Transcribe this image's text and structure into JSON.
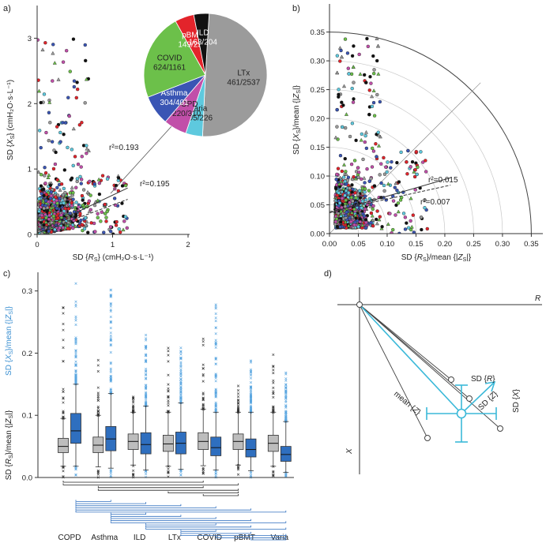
{
  "figure": {
    "panels": {
      "a": "a)",
      "b": "b)",
      "c": "c)",
      "d": "d)"
    }
  },
  "colors": {
    "ltx": "#9b9b9b",
    "varia": "#5ec9de",
    "copd": "#c14fa9",
    "asthma": "#3a55b4",
    "covid": "#6cc04a",
    "pbmt": "#e3242b",
    "ild": "#111111",
    "rs_box": "#bdbdbd",
    "xs_box": "#2f6fbf",
    "xs_outlier": "#5aa6e0",
    "vector": "#3bb9d9"
  },
  "chart_data": [
    {
      "id": "a",
      "type": "scatter",
      "xlabel_parts": [
        "SD {",
        "R",
        "S",
        "} (cmH₂O·s·L⁻¹)"
      ],
      "ylabel_parts": [
        "SD {",
        "X",
        "S",
        "} (cmH₂O·s·L⁻¹)"
      ],
      "xlim": [
        0,
        2
      ],
      "ylim": [
        0,
        3.5
      ],
      "xticks": [
        0,
        1,
        2
      ],
      "yticks": [
        0,
        1,
        2,
        3
      ],
      "annotations": {
        "r2_upper": "r²=0.193",
        "r2_lower": "r²=0.195"
      },
      "fits": [
        {
          "slope": 0.55,
          "intercept": 0.05
        },
        {
          "slope": 0.43,
          "intercept": 0.02
        }
      ]
    },
    {
      "id": "pie",
      "type": "pie",
      "slices": [
        {
          "name": "LTx",
          "value": 2537,
          "label": "461/2537",
          "color_key": "ltx"
        },
        {
          "name": "Varia",
          "value": 226,
          "label": "205/226",
          "color_key": "varia"
        },
        {
          "name": "COPD",
          "value": 310,
          "label": "220/310",
          "color_key": "copd"
        },
        {
          "name": "Asthma",
          "value": 401,
          "label": "304/401",
          "color_key": "asthma"
        },
        {
          "name": "COVID",
          "value": 1161,
          "label": "624/1161",
          "color_key": "covid"
        },
        {
          "name": "pBMT",
          "value": 256,
          "label": "149/256",
          "color_key": "pbmt"
        },
        {
          "name": "ILD",
          "value": 204,
          "label": "163/204",
          "color_key": "ild"
        }
      ]
    },
    {
      "id": "b",
      "type": "scatter",
      "xlabel_parts": [
        "SD {",
        "R",
        "S",
        "}/mean {|",
        "Z",
        "S",
        "|}"
      ],
      "ylabel_parts": [
        "SD {",
        "X",
        "S",
        "}/mean {|",
        "Z",
        "S",
        "|}"
      ],
      "xlim": [
        0,
        0.37
      ],
      "ylim": [
        0,
        0.37
      ],
      "xticks": [
        0.0,
        0.05,
        0.1,
        0.15,
        0.2,
        0.25,
        0.3,
        0.35
      ],
      "yticks": [
        0.0,
        0.05,
        0.1,
        0.15,
        0.2,
        0.25,
        0.3,
        0.35
      ],
      "tick_labels": [
        "0.00",
        "0.05",
        "0.10",
        "0.15",
        "0.20",
        "0.25",
        "0.30",
        "0.35"
      ],
      "arcs": [
        0.05,
        0.1,
        0.15,
        0.2,
        0.25,
        0.3,
        0.35
      ],
      "annotations": {
        "r2_upper": "r²=0.015",
        "r2_lower": "r²=0.007"
      },
      "fits": [
        {
          "slope": 0.29,
          "intercept": 0.036
        },
        {
          "slope": 0.22,
          "intercept": 0.038
        }
      ]
    },
    {
      "id": "c",
      "type": "box",
      "categories": [
        "COPD",
        "Asthma",
        "ILD",
        "LTx",
        "COVID",
        "pBMT",
        "Varia"
      ],
      "ylabel_upper_parts": [
        "SD {",
        "X",
        "S",
        "}/mean {|",
        "Z",
        "S",
        "|}"
      ],
      "ylabel_lower_parts": [
        "SD {",
        "R",
        "S",
        "}/mean {|",
        "Z",
        "S",
        "|}"
      ],
      "ylim": [
        0,
        0.33
      ],
      "yticks": [
        0.0,
        0.1,
        0.2,
        0.3
      ],
      "tick_labels": [
        "0.0",
        "0.1",
        "0.2",
        "0.3"
      ],
      "series": [
        {
          "name": "Rs",
          "stats": [
            {
              "q1": 0.04,
              "med": 0.05,
              "q3": 0.063,
              "lo": 0.018,
              "hi": 0.095,
              "max": 0.28
            },
            {
              "q1": 0.04,
              "med": 0.052,
              "q3": 0.065,
              "lo": 0.017,
              "hi": 0.1,
              "max": 0.19
            },
            {
              "q1": 0.045,
              "med": 0.058,
              "q3": 0.07,
              "lo": 0.02,
              "hi": 0.105,
              "max": 0.13
            },
            {
              "q1": 0.042,
              "med": 0.054,
              "q3": 0.068,
              "lo": 0.018,
              "hi": 0.105,
              "max": 0.21
            },
            {
              "q1": 0.045,
              "med": 0.058,
              "q3": 0.072,
              "lo": 0.019,
              "hi": 0.11,
              "max": 0.23
            },
            {
              "q1": 0.045,
              "med": 0.058,
              "q3": 0.07,
              "lo": 0.02,
              "hi": 0.105,
              "max": 0.17
            },
            {
              "q1": 0.042,
              "med": 0.055,
              "q3": 0.068,
              "lo": 0.018,
              "hi": 0.105,
              "max": 0.2
            }
          ]
        },
        {
          "name": "Xs",
          "stats": [
            {
              "q1": 0.055,
              "med": 0.075,
              "q3": 0.103,
              "lo": 0.018,
              "hi": 0.15,
              "max": 0.315
            },
            {
              "q1": 0.043,
              "med": 0.062,
              "q3": 0.082,
              "lo": 0.015,
              "hi": 0.135,
              "max": 0.308
            },
            {
              "q1": 0.038,
              "med": 0.053,
              "q3": 0.072,
              "lo": 0.012,
              "hi": 0.115,
              "max": 0.23
            },
            {
              "q1": 0.038,
              "med": 0.055,
              "q3": 0.073,
              "lo": 0.013,
              "hi": 0.12,
              "max": 0.22
            },
            {
              "q1": 0.035,
              "med": 0.048,
              "q3": 0.065,
              "lo": 0.012,
              "hi": 0.105,
              "max": 0.29
            },
            {
              "q1": 0.033,
              "med": 0.045,
              "q3": 0.062,
              "lo": 0.011,
              "hi": 0.105,
              "max": 0.19
            },
            {
              "q1": 0.026,
              "med": 0.037,
              "q3": 0.05,
              "lo": 0.008,
              "hi": 0.09,
              "max": 0.17
            }
          ]
        }
      ],
      "significance_brackets": {
        "rs": [
          [
            0,
            4
          ],
          [
            0,
            5
          ],
          [
            1,
            4
          ],
          [
            1,
            5
          ],
          [
            3,
            5
          ],
          [
            4,
            5
          ]
        ],
        "xs": [
          [
            0,
            1
          ],
          [
            0,
            2
          ],
          [
            0,
            3
          ],
          [
            0,
            4
          ],
          [
            0,
            5
          ],
          [
            0,
            6
          ],
          [
            1,
            2
          ],
          [
            1,
            3
          ],
          [
            1,
            4
          ],
          [
            1,
            5
          ],
          [
            1,
            6
          ],
          [
            2,
            4
          ],
          [
            2,
            5
          ],
          [
            2,
            6
          ],
          [
            3,
            4
          ],
          [
            3,
            5
          ],
          [
            3,
            6
          ],
          [
            4,
            6
          ],
          [
            5,
            6
          ]
        ]
      }
    }
  ],
  "diagram": {
    "axis_r": "R",
    "axis_x": "X",
    "mean_label_parts": [
      "mean {",
      "Z",
      "}"
    ],
    "sd_r_parts": [
      "SD {",
      "R",
      "}"
    ],
    "sd_x_parts": [
      "SD {",
      "X",
      "}"
    ],
    "sd_z_parts": [
      "SD {",
      "Z",
      "}"
    ]
  }
}
